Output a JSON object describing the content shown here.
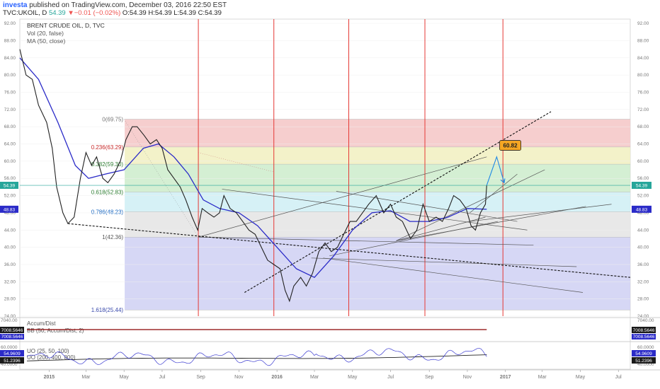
{
  "header": {
    "user": "investa",
    "published": "published on TradingView.com, December 03, 2016 22:50 EST",
    "symbol": "TVC:UKOIL, D",
    "last": "54.39",
    "change": "▼−0.01 (−0.02%)",
    "ohlc": "O:54.39 H:54.39 L:54.39 C:54.39"
  },
  "legend": {
    "title": "BRENT CRUDE OIL, D, TVC",
    "vol": "Vol (20, false)",
    "ma": "MA (50, close)"
  },
  "colors": {
    "price": "#222222",
    "ma": "#2b2bc8",
    "vline": "#e53935",
    "fib_red": "#f5c6c6",
    "fib_yellow": "#f1f0c0",
    "fib_green": "#cdeccb",
    "fib_cyan": "#cfeef4",
    "fib_gray": "#e4e4e4",
    "fib_blue": "#cfd0f3",
    "target": "#f5a623",
    "accum": "#8b0000",
    "uo1": "#3b3bd0",
    "uo2": "#222222"
  },
  "chart_data": {
    "type": "line",
    "title": "BRENT CRUDE OIL, D, TVC",
    "x_tick_labels": [
      "2015",
      "Mar",
      "May",
      "Jul",
      "Sep",
      "Nov",
      "2016",
      "Mar",
      "May",
      "Jul",
      "Sep",
      "Nov",
      "2017",
      "Mar",
      "May",
      "Jul"
    ],
    "y_tick_labels": [
      "92.00",
      "88.00",
      "84.00",
      "80.00",
      "76.00",
      "72.00",
      "68.00",
      "64.00",
      "60.00",
      "56.00",
      "52.00",
      "48.00",
      "44.00",
      "40.00",
      "36.00",
      "32.00",
      "28.00",
      "24.00"
    ],
    "ylim": [
      24,
      93
    ],
    "x_range": [
      "2014-11-15",
      "2017-07-20"
    ],
    "price_series": {
      "name": "TVC:UKOIL",
      "points": [
        [
          "2014-11-15",
          86
        ],
        [
          "2014-11-25",
          80
        ],
        [
          "2014-12-05",
          79
        ],
        [
          "2014-12-15",
          73
        ],
        [
          "2014-12-28",
          69
        ],
        [
          "2015-01-06",
          63
        ],
        [
          "2015-01-13",
          54
        ],
        [
          "2015-01-23",
          48
        ],
        [
          "2015-01-31",
          45.5
        ],
        [
          "2015-02-10",
          47
        ],
        [
          "2015-02-20",
          56
        ],
        [
          "2015-03-01",
          62
        ],
        [
          "2015-03-10",
          59
        ],
        [
          "2015-03-18",
          61
        ],
        [
          "2015-03-28",
          56
        ],
        [
          "2015-04-05",
          55
        ],
        [
          "2015-04-15",
          57
        ],
        [
          "2015-04-25",
          60
        ],
        [
          "2015-05-04",
          65
        ],
        [
          "2015-05-14",
          68
        ],
        [
          "2015-05-22",
          68
        ],
        [
          "2015-06-02",
          66
        ],
        [
          "2015-06-12",
          64
        ],
        [
          "2015-06-22",
          65
        ],
        [
          "2015-07-01",
          63
        ],
        [
          "2015-07-10",
          58
        ],
        [
          "2015-07-20",
          56
        ],
        [
          "2015-07-30",
          54
        ],
        [
          "2015-08-08",
          51
        ],
        [
          "2015-08-18",
          47
        ],
        [
          "2015-08-27",
          44
        ],
        [
          "2015-09-03",
          49
        ],
        [
          "2015-09-12",
          48
        ],
        [
          "2015-09-22",
          47
        ],
        [
          "2015-10-01",
          48
        ],
        [
          "2015-10-08",
          52
        ],
        [
          "2015-10-18",
          49
        ],
        [
          "2015-10-28",
          48
        ],
        [
          "2015-11-07",
          46
        ],
        [
          "2015-11-17",
          44
        ],
        [
          "2015-11-27",
          43
        ],
        [
          "2015-12-07",
          40
        ],
        [
          "2015-12-17",
          37
        ],
        [
          "2015-12-27",
          36
        ],
        [
          "2016-01-06",
          35
        ],
        [
          "2016-01-14",
          30
        ],
        [
          "2016-01-21",
          27.5
        ],
        [
          "2016-01-28",
          31
        ],
        [
          "2016-02-08",
          33
        ],
        [
          "2016-02-17",
          31
        ],
        [
          "2016-02-27",
          34
        ],
        [
          "2016-03-08",
          39
        ],
        [
          "2016-03-18",
          41
        ],
        [
          "2016-03-28",
          39
        ],
        [
          "2016-04-07",
          40
        ],
        [
          "2016-04-17",
          43
        ],
        [
          "2016-04-27",
          46
        ],
        [
          "2016-05-07",
          46
        ],
        [
          "2016-05-17",
          48
        ],
        [
          "2016-05-27",
          50
        ],
        [
          "2016-06-08",
          52
        ],
        [
          "2016-06-20",
          48
        ],
        [
          "2016-07-01",
          50
        ],
        [
          "2016-07-10",
          47
        ],
        [
          "2016-07-20",
          46
        ],
        [
          "2016-08-02",
          42
        ],
        [
          "2016-08-12",
          44
        ],
        [
          "2016-08-22",
          50
        ],
        [
          "2016-09-01",
          46
        ],
        [
          "2016-09-12",
          47
        ],
        [
          "2016-09-22",
          46
        ],
        [
          "2016-10-02",
          49
        ],
        [
          "2016-10-10",
          52
        ],
        [
          "2016-10-20",
          51
        ],
        [
          "2016-10-30",
          49
        ],
        [
          "2016-11-07",
          45
        ],
        [
          "2016-11-14",
          44
        ],
        [
          "2016-11-22",
          48
        ],
        [
          "2016-11-30",
          50
        ],
        [
          "2016-12-02",
          54.39
        ]
      ]
    },
    "ma_series": {
      "name": "MA (50, close)",
      "points": [
        [
          "2014-11-15",
          84
        ],
        [
          "2014-12-15",
          79
        ],
        [
          "2015-01-15",
          69
        ],
        [
          "2015-02-12",
          59
        ],
        [
          "2015-03-05",
          56
        ],
        [
          "2015-04-01",
          57
        ],
        [
          "2015-05-01",
          58
        ],
        [
          "2015-06-01",
          63
        ],
        [
          "2015-06-25",
          64
        ],
        [
          "2015-07-20",
          61
        ],
        [
          "2015-08-12",
          57
        ],
        [
          "2015-09-05",
          51
        ],
        [
          "2015-10-01",
          49
        ],
        [
          "2015-11-01",
          48
        ],
        [
          "2015-12-01",
          45
        ],
        [
          "2016-01-01",
          40
        ],
        [
          "2016-02-01",
          35
        ],
        [
          "2016-03-01",
          33
        ],
        [
          "2016-04-01",
          38
        ],
        [
          "2016-05-01",
          44
        ],
        [
          "2016-06-01",
          48
        ],
        [
          "2016-07-01",
          48.5
        ],
        [
          "2016-08-01",
          46
        ],
        [
          "2016-09-01",
          46
        ],
        [
          "2016-10-01",
          47
        ],
        [
          "2016-11-01",
          49
        ],
        [
          "2016-12-02",
          48.83
        ]
      ]
    },
    "fib_levels": [
      {
        "label": "0(69.75)",
        "value": 69.75
      },
      {
        "label": "0.236(63.29)",
        "value": 63.29
      },
      {
        "label": "0.382(59.30)",
        "value": 59.3
      },
      {
        "label": "0.618(52.83)",
        "value": 52.83
      },
      {
        "label": "0.786(48.23)",
        "value": 48.23
      },
      {
        "label": "1(42.36)",
        "value": 42.36
      },
      {
        "label": "1.618(25.44)",
        "value": 25.44
      }
    ],
    "price_tag": "54.39",
    "ma_tag": "48.83",
    "target_label": "60.82",
    "vertical_lines": [
      "2015-08-28",
      "2015-12-27",
      "2016-04-25",
      "2016-08-25",
      "2016-12-28"
    ],
    "accum_panel": {
      "title": "Accum/Dist",
      "sub": "BB (50, Accum/Dist, 2)",
      "value": "7008.5646",
      "y_labels": [
        "7040.00"
      ]
    },
    "uo_panel": {
      "title1": "UO (25, 50, 100)",
      "title2": "UO (200, 400, 800)",
      "value1": "54.9609",
      "value2": "51.2396",
      "y_labels": [
        "60.0000",
        "40.0000"
      ]
    }
  }
}
